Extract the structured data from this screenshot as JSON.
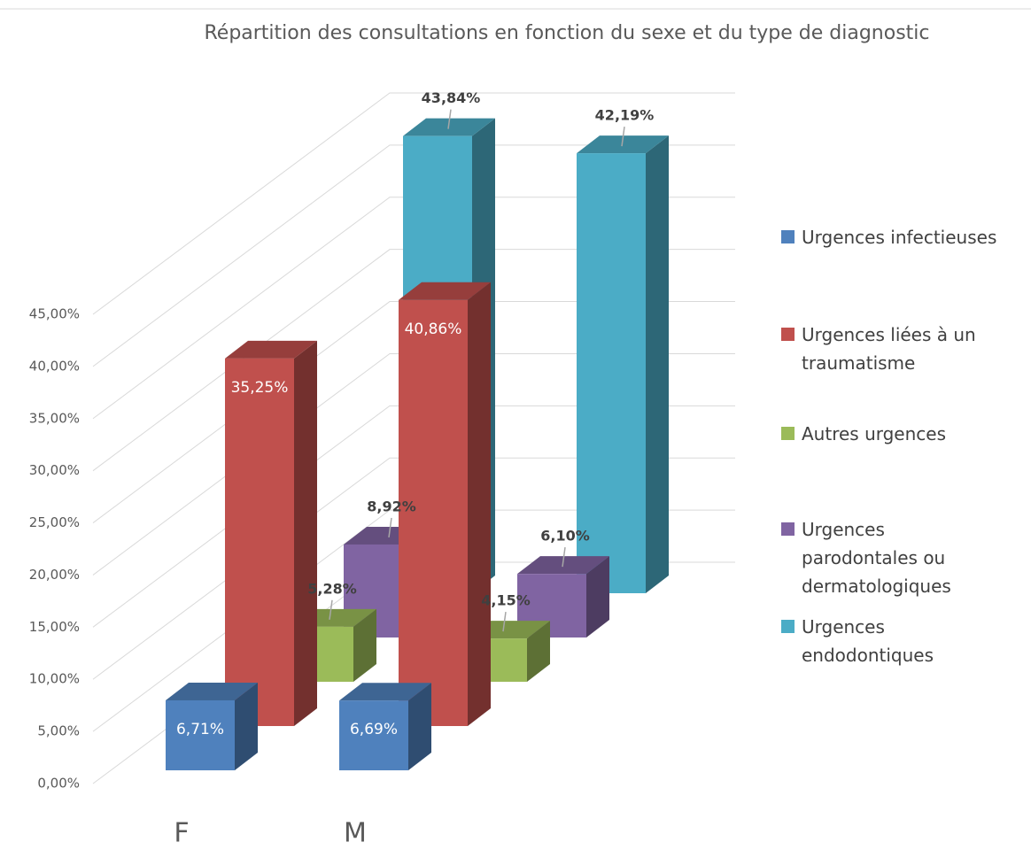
{
  "chart_data": {
    "type": "bar3d",
    "title": "Répartition des consultations en fonction du sexe et du type de diagnostic",
    "categories": [
      "F",
      "M"
    ],
    "series": [
      {
        "name": "Urgences infectieuses",
        "color": "#4f81bd",
        "values": [
          6.71,
          6.69
        ],
        "value_labels": [
          "6,71%",
          "6,69%"
        ]
      },
      {
        "name": "Urgences liées à un traumatisme",
        "color": "#c0504d",
        "values": [
          35.25,
          40.86
        ],
        "value_labels": [
          "35,25%",
          "40,86%"
        ]
      },
      {
        "name": "Autres urgences",
        "color": "#9bbb59",
        "values": [
          5.28,
          4.15
        ],
        "value_labels": [
          "5,28%",
          "4,15%"
        ]
      },
      {
        "name": "Urgences parodontales ou dermatologiques",
        "color": "#8064a2",
        "values": [
          8.92,
          6.1
        ],
        "value_labels": [
          "8,92%",
          "6,10%"
        ]
      },
      {
        "name": "Urgences endodontiques",
        "color": "#4bacc6",
        "values": [
          43.84,
          42.19
        ],
        "value_labels": [
          "43,84%",
          "42,19%"
        ]
      }
    ],
    "ylim": [
      0,
      45
    ],
    "yticks": [
      {
        "value": 0,
        "label": "0,00%"
      },
      {
        "value": 5,
        "label": "5,00%"
      },
      {
        "value": 10,
        "label": "10,00%"
      },
      {
        "value": 15,
        "label": "15,00%"
      },
      {
        "value": 20,
        "label": "20,00%"
      },
      {
        "value": 25,
        "label": "25,00%"
      },
      {
        "value": 30,
        "label": "30,00%"
      },
      {
        "value": 35,
        "label": "35,00%"
      },
      {
        "value": 40,
        "label": "40,00%"
      },
      {
        "value": 45,
        "label": "45,00%"
      }
    ],
    "grid": true,
    "legend": "right"
  }
}
